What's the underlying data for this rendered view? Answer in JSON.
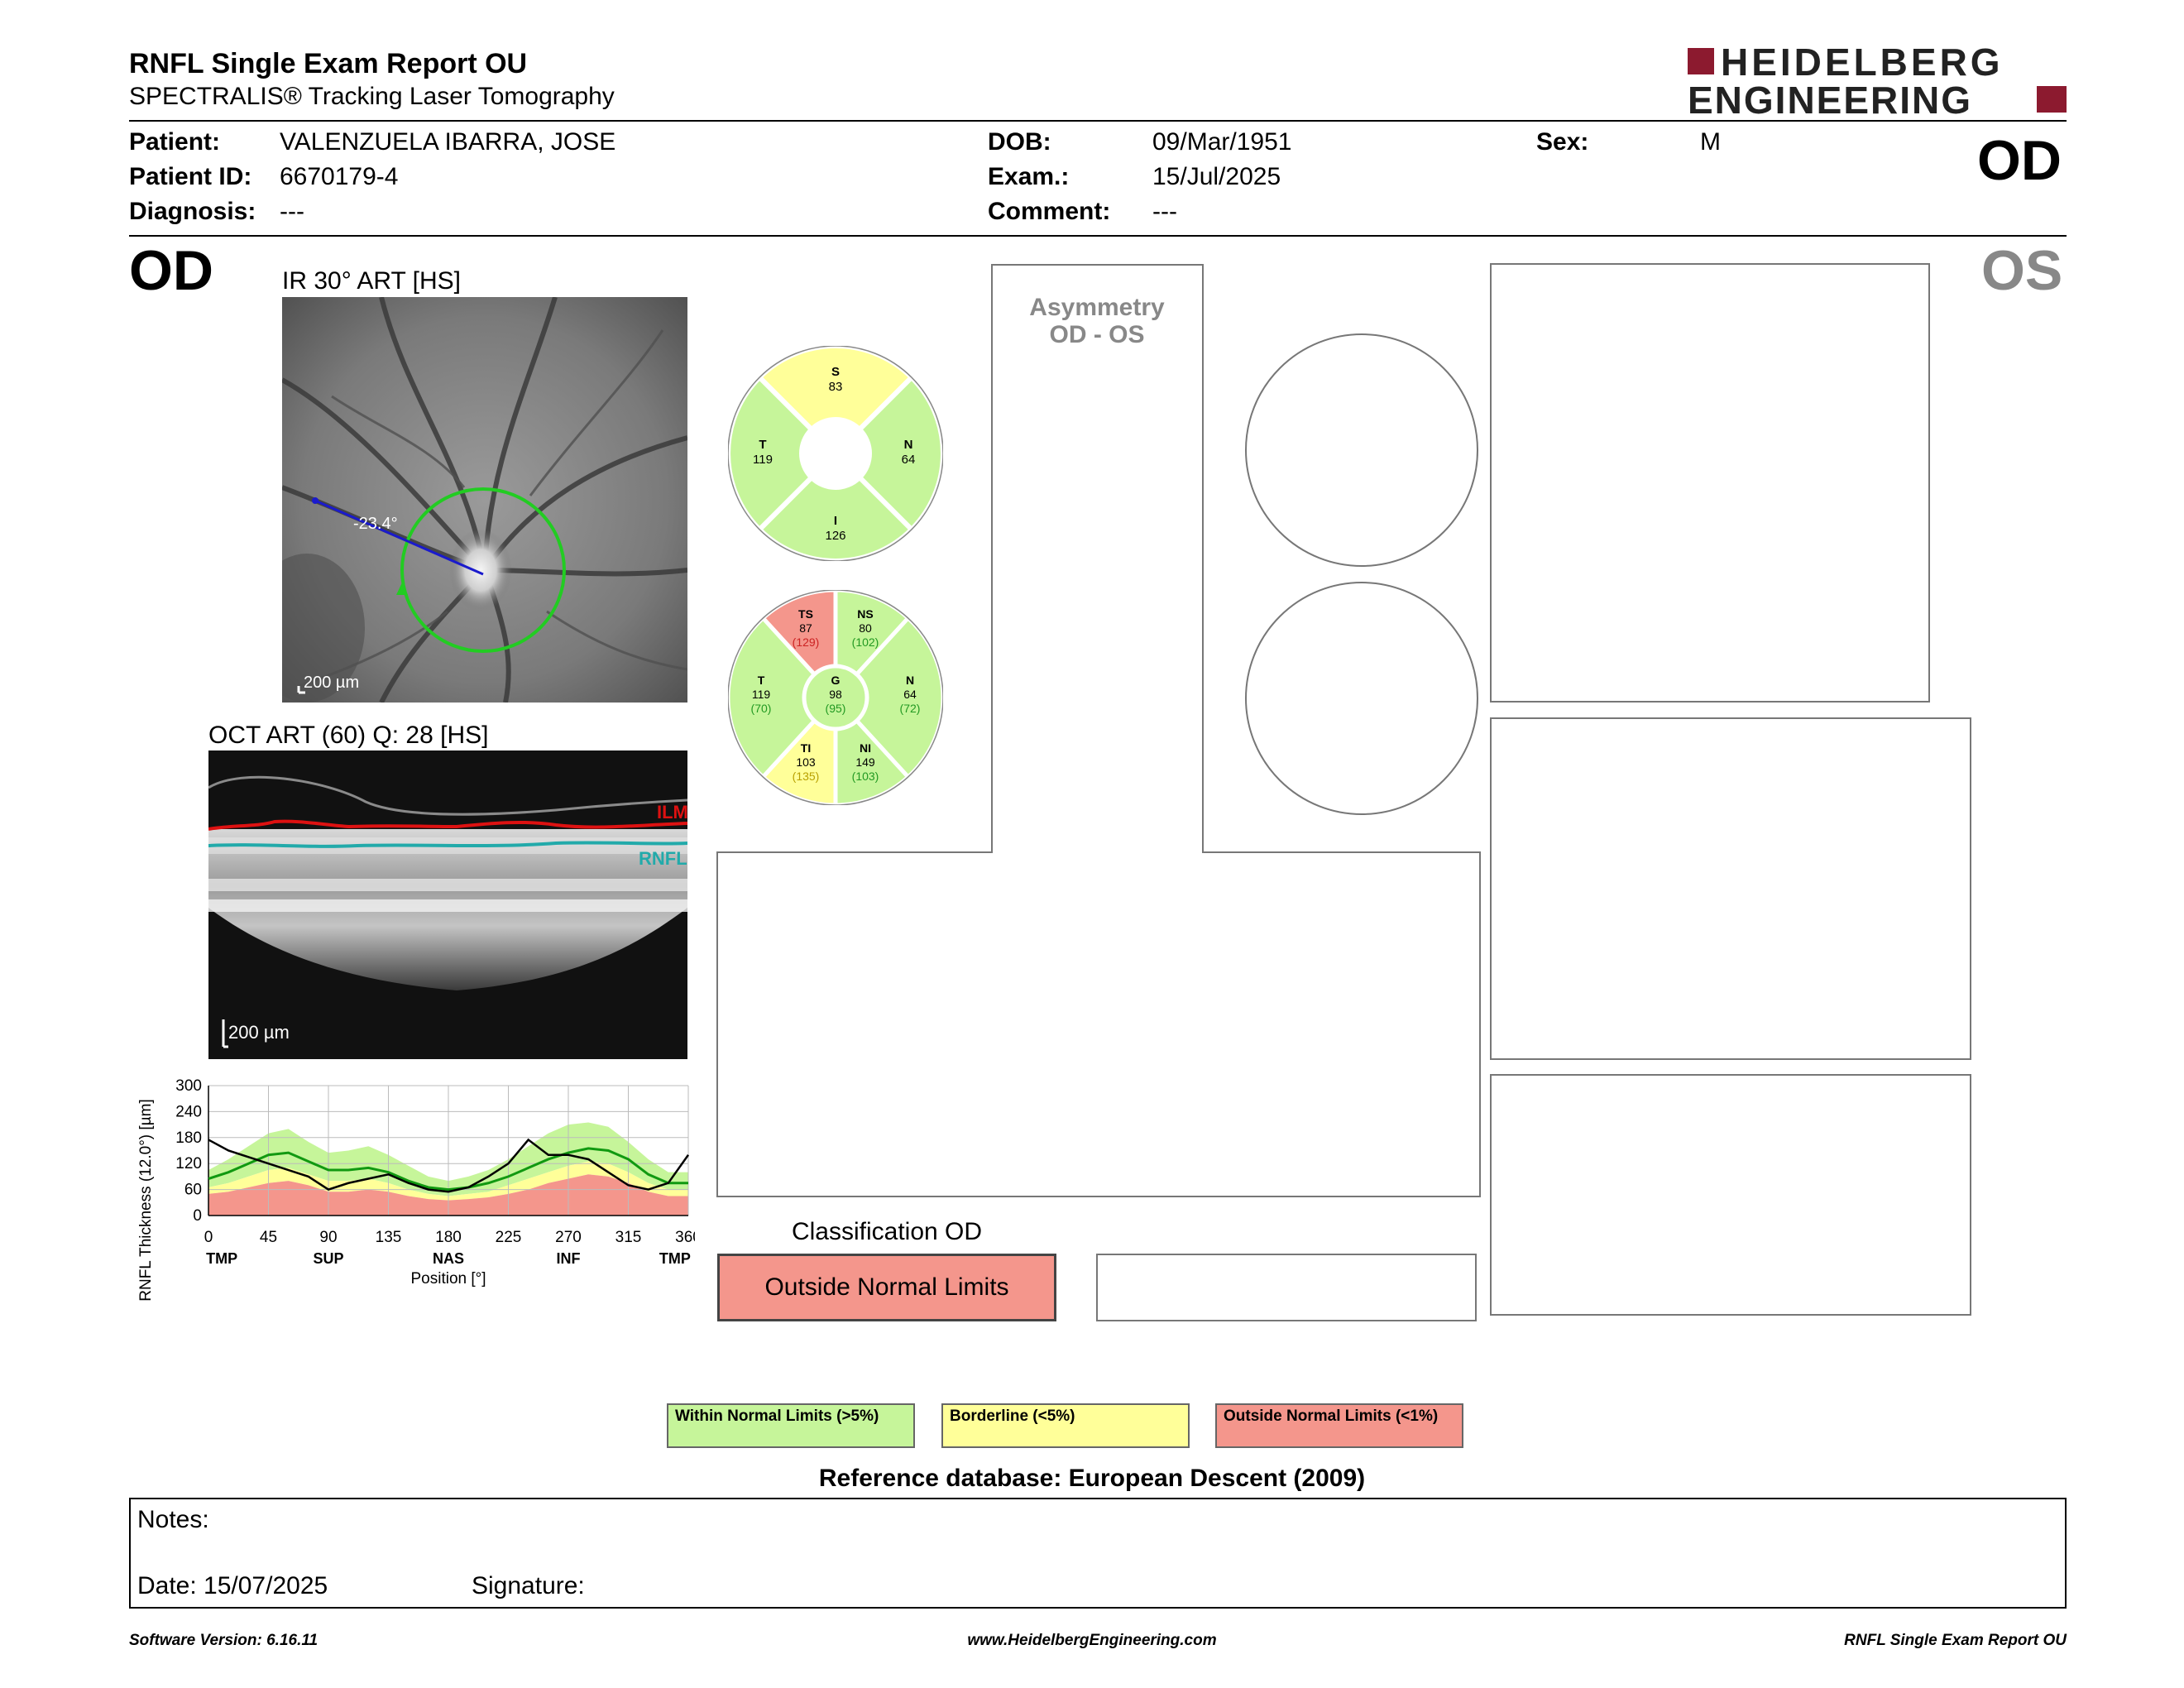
{
  "header": {
    "title": "RNFL Single Exam Report OU",
    "subtitle": "SPECTRALIS® Tracking Laser Tomography",
    "brand_line1": "HEIDELBERG",
    "brand_line2": "ENGINEERING",
    "eye": "OD"
  },
  "patient": {
    "patient_label": "Patient:",
    "patient_value": "VALENZUELA IBARRA, JOSE",
    "id_label": "Patient ID:",
    "id_value": "6670179-4",
    "diagnosis_label": "Diagnosis:",
    "diagnosis_value": "---",
    "dob_label": "DOB:",
    "dob_value": "09/Mar/1951",
    "exam_label": "Exam.:",
    "exam_value": "15/Jul/2025",
    "comment_label": "Comment:",
    "comment_value": "---",
    "sex_label": "Sex:",
    "sex_value": "M"
  },
  "od_section": {
    "eye_label": "OD",
    "os_label": "OS",
    "ir_title": "IR 30° ART [HS]",
    "ir_scale": "200 µm",
    "ir_angle": "-23.4°",
    "oct_title": "OCT ART (60) Q: 28 [HS]",
    "oct_scale": "200 µm",
    "ilm_label": "ILM",
    "rnfl_label": "RNFL"
  },
  "sectors4": {
    "S": {
      "label": "S",
      "value": "83",
      "status": "borderline"
    },
    "N": {
      "label": "N",
      "value": "64",
      "status": "normal"
    },
    "I": {
      "label": "I",
      "value": "126",
      "status": "normal"
    },
    "T": {
      "label": "T",
      "value": "119",
      "status": "normal"
    }
  },
  "sectors6": {
    "TS": {
      "label": "TS",
      "value": "87",
      "ref": "(129)",
      "status": "outside"
    },
    "NS": {
      "label": "NS",
      "value": "80",
      "ref": "(102)",
      "status": "normal"
    },
    "N": {
      "label": "N",
      "value": "64",
      "ref": "(72)",
      "status": "normal"
    },
    "NI": {
      "label": "NI",
      "value": "149",
      "ref": "(103)",
      "status": "normal"
    },
    "TI": {
      "label": "TI",
      "value": "103",
      "ref": "(135)",
      "status": "borderline"
    },
    "T": {
      "label": "T",
      "value": "119",
      "ref": "(70)",
      "status": "normal"
    },
    "G": {
      "label": "G",
      "value": "98",
      "ref": "(95)",
      "status": "normal"
    }
  },
  "asymmetry": {
    "line1": "Asymmetry",
    "line2": "OD - OS"
  },
  "classification": {
    "title": "Classification OD",
    "result": "Outside Normal Limits"
  },
  "legend": {
    "normal": "Within Normal Limits (>5%)",
    "borderline": "Borderline (<5%)",
    "outside": "Outside Normal Limits (<1%)"
  },
  "reference_db": "Reference database: European Descent (2009)",
  "notes": {
    "notes_label": "Notes:",
    "date_label": "Date: 15/07/2025",
    "signature_label": "Signature:"
  },
  "footer": {
    "version": "Software Version: 6.16.11",
    "website": "www.HeidelbergEngineering.com",
    "report_name": "RNFL Single Exam Report OU"
  },
  "colors": {
    "normal": "#c6f59a",
    "borderline": "#ffff99",
    "outside": "#f4968c",
    "brand": "#8c1a2f",
    "scan_circle": "#22cc22",
    "ilm": "#dd1111",
    "rnfl": "#22aaaa"
  },
  "chart_data": {
    "type": "line",
    "ylabel": "RNFL Thickness (12.0°) [µm]",
    "xlabel": "Position [°]",
    "x_ticks": [
      0,
      45,
      90,
      135,
      180,
      225,
      270,
      315,
      360
    ],
    "y_ticks": [
      0,
      60,
      120,
      180,
      240,
      300
    ],
    "xlim": [
      0,
      360
    ],
    "ylim": [
      0,
      300
    ],
    "x_region_labels": [
      {
        "x": 10,
        "label": "TMP"
      },
      {
        "x": 90,
        "label": "SUP"
      },
      {
        "x": 180,
        "label": "NAS"
      },
      {
        "x": 270,
        "label": "INF"
      },
      {
        "x": 350,
        "label": "TMP"
      }
    ],
    "grid": true,
    "x": [
      0,
      15,
      30,
      45,
      60,
      75,
      90,
      105,
      120,
      135,
      150,
      165,
      180,
      195,
      210,
      225,
      240,
      255,
      270,
      285,
      300,
      315,
      330,
      345,
      360
    ],
    "series": [
      {
        "role": "measured",
        "color": "#000000",
        "values": [
          175,
          150,
          135,
          120,
          105,
          90,
          60,
          75,
          85,
          95,
          75,
          60,
          55,
          65,
          90,
          120,
          175,
          140,
          140,
          130,
          100,
          70,
          60,
          75,
          140
        ]
      },
      {
        "role": "normative_mean",
        "color": "#119911",
        "values": [
          85,
          100,
          120,
          140,
          145,
          125,
          105,
          105,
          110,
          100,
          80,
          65,
          60,
          65,
          75,
          90,
          110,
          130,
          145,
          155,
          150,
          130,
          95,
          75,
          75
        ]
      },
      {
        "role": "limit_5pct",
        "values": [
          65,
          75,
          90,
          105,
          110,
          95,
          80,
          80,
          85,
          75,
          60,
          50,
          45,
          50,
          55,
          70,
          85,
          100,
          115,
          125,
          120,
          100,
          75,
          60,
          60
        ]
      },
      {
        "role": "limit_1pct",
        "values": [
          50,
          55,
          65,
          75,
          80,
          70,
          55,
          55,
          60,
          55,
          45,
          38,
          35,
          38,
          42,
          50,
          60,
          75,
          85,
          95,
          90,
          75,
          55,
          45,
          45
        ]
      },
      {
        "role": "upper_limit",
        "values": [
          105,
          130,
          160,
          190,
          200,
          170,
          145,
          150,
          160,
          140,
          115,
          90,
          80,
          90,
          105,
          130,
          160,
          190,
          210,
          215,
          205,
          170,
          130,
          100,
          100
        ]
      }
    ]
  }
}
